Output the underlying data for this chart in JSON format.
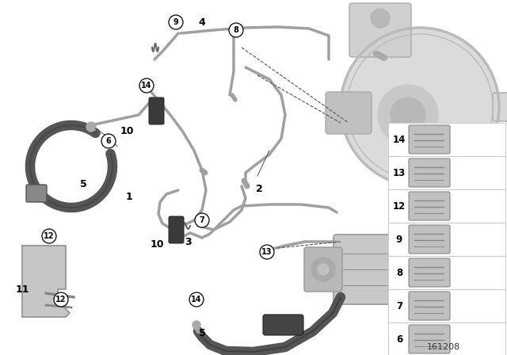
{
  "background_color": "#ffffff",
  "diagram_number": "161208",
  "booster_color": "#d8d8d8",
  "abs_color": "#c8c8c8",
  "pipe_color": "#a0a0a0",
  "hose_color": "#888888",
  "dark_hose_color": "#555555",
  "sleeve_color": "#3a3a3a",
  "bracket_color": "#b8b8b8",
  "leader_color": "#555555",
  "sidebar_bg": "#ffffff",
  "sidebar_border": "#cccccc",
  "part_icon_color": "#b0b0b0"
}
